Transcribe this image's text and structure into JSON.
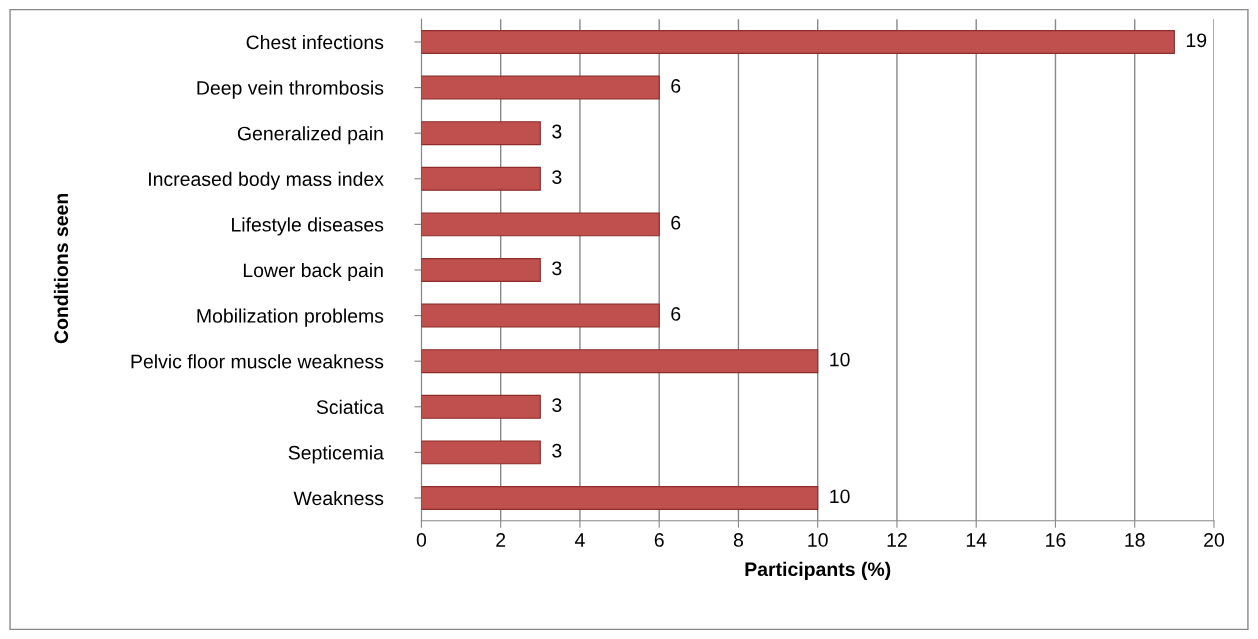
{
  "chart_data": {
    "type": "bar",
    "orientation": "horizontal",
    "xlabel": "Participants (%)",
    "ylabel": "Conditions seen",
    "categories": [
      "Chest infections",
      "Deep vein thrombosis",
      "Generalized pain",
      "Increased body mass index",
      "Lifestyle diseases",
      "Lower back pain",
      "Mobilization problems",
      "Pelvic floor muscle weakness",
      "Sciatica",
      "Septicemia",
      "Weakness"
    ],
    "values": [
      19,
      6,
      3,
      3,
      6,
      3,
      6,
      10,
      3,
      3,
      10
    ],
    "color": "#c0504d",
    "xlim": [
      0,
      20
    ],
    "xticks": [
      0,
      2,
      4,
      6,
      8,
      10,
      12,
      14,
      16,
      18,
      20
    ],
    "grid": "x",
    "data_labels": true
  }
}
